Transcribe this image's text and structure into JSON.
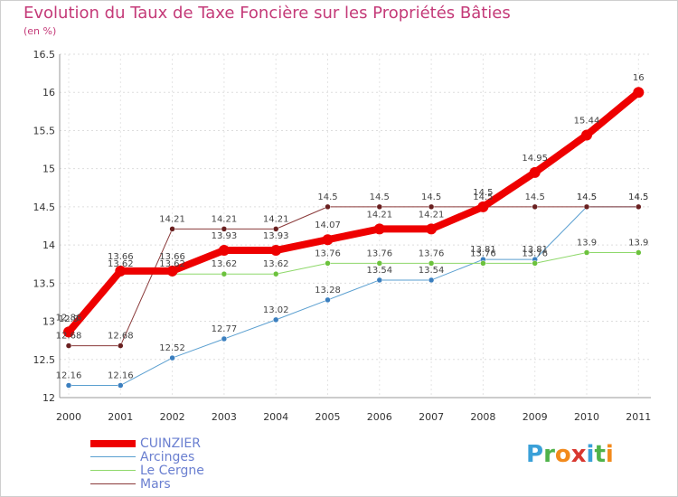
{
  "title": "Evolution du Taux de Taxe Foncière sur les Propriétés Bâties",
  "subtitle": "(en %)",
  "logo": {
    "letters": [
      "P",
      "r",
      "o",
      "x",
      "i",
      "t",
      "i"
    ],
    "colors": [
      "#3aa0d8",
      "#4fb24a",
      "#f28a1c",
      "#d8372f",
      "#3aa0d8",
      "#4fb24a",
      "#f28a1c"
    ]
  },
  "chart_data": {
    "type": "line",
    "title": "Evolution du Taux de Taxe Foncière sur les Propriétés Bâties",
    "ylabel": "(en %)",
    "xlabel": "",
    "x": [
      "2000",
      "2001",
      "2002",
      "2003",
      "2004",
      "2005",
      "2006",
      "2007",
      "2008",
      "2009",
      "2010",
      "2011"
    ],
    "ylim": [
      12,
      16.5
    ],
    "yticks": [
      "12",
      "12.5",
      "13",
      "13.5",
      "14",
      "14.5",
      "15",
      "15.5",
      "16",
      "16.5"
    ],
    "grid": true,
    "legend_position": "bottom-left",
    "series": [
      {
        "name": "Arcinges",
        "color": "#5a9fd0",
        "marker": "#3b7fbf",
        "width": 1,
        "values": [
          12.16,
          12.16,
          12.52,
          12.77,
          13.02,
          13.28,
          13.54,
          13.54,
          13.81,
          13.81,
          14.5,
          14.5
        ],
        "labels": [
          "12.16",
          "12.16",
          "12.52",
          "12.77",
          "13.02",
          "13.28",
          "13.54",
          "13.54",
          "13.81",
          "13.81",
          "14.5",
          "14.5"
        ]
      },
      {
        "name": "Le Cergne",
        "color": "#8ed86a",
        "marker": "#6cc23d",
        "width": 1,
        "values": [
          12.9,
          13.62,
          13.62,
          13.62,
          13.62,
          13.76,
          13.76,
          13.76,
          13.76,
          13.76,
          13.9,
          13.9
        ],
        "labels": [
          "12.9",
          "13.62",
          "13.62",
          "13.62",
          "13.62",
          "13.76",
          "13.76",
          "13.76",
          "13.76",
          "13.76",
          "13.9",
          "13.9"
        ]
      },
      {
        "name": "Mars",
        "color": "#8a3a3a",
        "marker": "#6a2020",
        "width": 1,
        "values": [
          12.68,
          12.68,
          14.21,
          14.21,
          14.21,
          14.5,
          14.5,
          14.5,
          14.5,
          14.5,
          14.5,
          14.5
        ],
        "labels": [
          "12.68",
          "12.68",
          "14.21",
          "14.21",
          "14.21",
          "14.5",
          "14.5",
          "14.5",
          "14.5",
          "14.5",
          "14.5",
          "14.5"
        ]
      },
      {
        "name": "CUINZIER",
        "color": "#ee0000",
        "marker": "#ee0000",
        "width": 8,
        "values": [
          12.86,
          13.66,
          13.66,
          13.93,
          13.93,
          14.07,
          14.21,
          14.21,
          14.5,
          14.95,
          15.44,
          16
        ],
        "labels": [
          "12.86",
          "13.66",
          "13.66",
          "13.93",
          "13.93",
          "14.07",
          "14.21",
          "14.21",
          "14.5",
          "14.95",
          "15.44",
          "16"
        ]
      }
    ],
    "legend": [
      {
        "name": "CUINZIER",
        "color": "#ee0000",
        "width": 8
      },
      {
        "name": "Arcinges",
        "color": "#5a9fd0",
        "width": 1
      },
      {
        "name": "Le Cergne",
        "color": "#8ed86a",
        "width": 1
      },
      {
        "name": "Mars",
        "color": "#8a3a3a",
        "width": 1
      }
    ]
  }
}
